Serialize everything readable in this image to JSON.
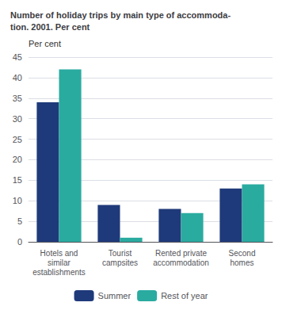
{
  "chart_data": {
    "type": "bar",
    "title": "Number of holiday trips by main type of accommoda-\ntion. 2001. Per cent",
    "y_label": "Per cent",
    "categories": [
      "Hotels and\nsimilar\nestablishments",
      "Tourist\ncampsites",
      "Rented private\naccommodation",
      "Second\nhomes"
    ],
    "series": [
      {
        "name": "Summer",
        "color": "#1f3a7a",
        "values": [
          34,
          9,
          8,
          13
        ]
      },
      {
        "name": "Rest of year",
        "color": "#2aaba0",
        "values": [
          42,
          1,
          7,
          14
        ]
      }
    ],
    "ylim": [
      0,
      45
    ],
    "yticks": [
      0,
      5,
      10,
      15,
      20,
      25,
      30,
      35,
      40,
      45
    ],
    "grid": true,
    "legend": "bottom"
  }
}
